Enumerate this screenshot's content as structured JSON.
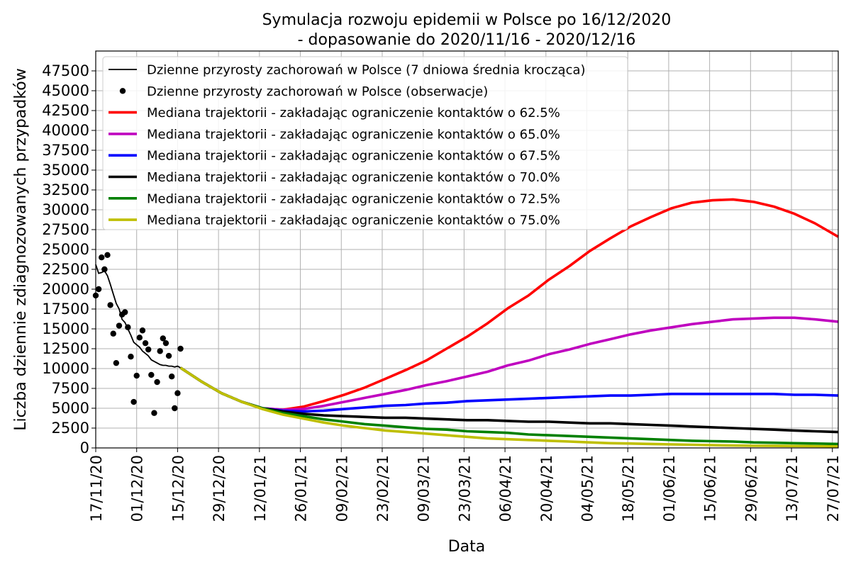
{
  "chart_data": {
    "type": "line",
    "title_line1": "Symulacja rozwoju epidemii w Polsce po 16/12/2020",
    "title_line2": "- dopasowanie do 2020/11/16 - 2020/12/16",
    "xlabel": "Data",
    "ylabel": "Liczba dziennie zdiagnozowanych przypadków",
    "xlim": [
      "2020-11-17",
      "2021-07-29"
    ],
    "ylim": [
      0,
      50000
    ],
    "grid": true,
    "legend_position": "top-left",
    "x_ticks": [
      "17/11/20",
      "01/12/20",
      "15/12/20",
      "29/12/20",
      "12/01/21",
      "26/01/21",
      "09/02/21",
      "23/02/21",
      "09/03/21",
      "23/03/21",
      "06/04/21",
      "20/04/21",
      "04/05/21",
      "18/05/21",
      "01/06/21",
      "15/06/21",
      "29/06/21",
      "13/07/21",
      "27/07/21"
    ],
    "x_tick_dates": [
      "2020-11-17",
      "2020-12-01",
      "2020-12-15",
      "2020-12-29",
      "2021-01-12",
      "2021-01-26",
      "2021-02-09",
      "2021-02-23",
      "2021-03-09",
      "2021-03-23",
      "2021-04-06",
      "2021-04-20",
      "2021-05-04",
      "2021-05-18",
      "2021-06-01",
      "2021-06-15",
      "2021-06-29",
      "2021-07-13",
      "2021-07-27"
    ],
    "y_ticks": [
      0,
      2500,
      5000,
      7500,
      10000,
      12500,
      15000,
      17500,
      20000,
      22500,
      25000,
      27500,
      30000,
      32500,
      35000,
      37500,
      40000,
      42500,
      45000,
      47500
    ],
    "observations": {
      "name": "Dzienne przyrosty zachorowań w Polsce (obserwacje)",
      "color": "#000000",
      "points": [
        [
          "2020-11-17",
          19200
        ],
        [
          "2020-11-18",
          20000
        ],
        [
          "2020-11-19",
          24000
        ],
        [
          "2020-11-20",
          22500
        ],
        [
          "2020-11-21",
          24300
        ],
        [
          "2020-11-22",
          18000
        ],
        [
          "2020-11-23",
          14400
        ],
        [
          "2020-11-24",
          10700
        ],
        [
          "2020-11-25",
          15400
        ],
        [
          "2020-11-26",
          16800
        ],
        [
          "2020-11-27",
          17100
        ],
        [
          "2020-11-28",
          15200
        ],
        [
          "2020-11-29",
          11500
        ],
        [
          "2020-11-30",
          5800
        ],
        [
          "2020-12-01",
          9100
        ],
        [
          "2020-12-02",
          13900
        ],
        [
          "2020-12-03",
          14800
        ],
        [
          "2020-12-04",
          13200
        ],
        [
          "2020-12-05",
          12400
        ],
        [
          "2020-12-06",
          9200
        ],
        [
          "2020-12-07",
          4400
        ],
        [
          "2020-12-08",
          8300
        ],
        [
          "2020-12-09",
          12200
        ],
        [
          "2020-12-10",
          13800
        ],
        [
          "2020-12-11",
          13200
        ],
        [
          "2020-12-12",
          11600
        ],
        [
          "2020-12-13",
          9000
        ],
        [
          "2020-12-14",
          5000
        ],
        [
          "2020-12-15",
          6900
        ],
        [
          "2020-12-16",
          12500
        ]
      ]
    },
    "rolling_avg": {
      "name": "Dzienne przyrosty zachorowań w Polsce (7 dniowa średnia krocząca)",
      "color": "#000000",
      "points": [
        [
          "2020-11-17",
          23100
        ],
        [
          "2020-11-18",
          22000
        ],
        [
          "2020-11-19",
          22100
        ],
        [
          "2020-11-20",
          22300
        ],
        [
          "2020-11-21",
          21700
        ],
        [
          "2020-11-22",
          20600
        ],
        [
          "2020-11-23",
          19400
        ],
        [
          "2020-11-24",
          18200
        ],
        [
          "2020-11-25",
          17500
        ],
        [
          "2020-11-26",
          16200
        ],
        [
          "2020-11-27",
          15800
        ],
        [
          "2020-11-28",
          15000
        ],
        [
          "2020-11-29",
          14200
        ],
        [
          "2020-11-30",
          13300
        ],
        [
          "2020-12-01",
          13000
        ],
        [
          "2020-12-02",
          12700
        ],
        [
          "2020-12-03",
          12200
        ],
        [
          "2020-12-04",
          11900
        ],
        [
          "2020-12-05",
          11600
        ],
        [
          "2020-12-06",
          11100
        ],
        [
          "2020-12-07",
          10900
        ],
        [
          "2020-12-08",
          10700
        ],
        [
          "2020-12-09",
          10500
        ],
        [
          "2020-12-10",
          10400
        ],
        [
          "2020-12-11",
          10400
        ],
        [
          "2020-12-12",
          10300
        ],
        [
          "2020-12-13",
          10300
        ],
        [
          "2020-12-14",
          10200
        ],
        [
          "2020-12-15",
          10300
        ],
        [
          "2020-12-16",
          10100
        ]
      ]
    },
    "series": [
      {
        "name": "Mediana trajektorii - zakładając ograniczenie kontaktów o 62.5%",
        "color": "#ff0000",
        "points": [
          [
            "2020-12-16",
            10100
          ],
          [
            "2020-12-23",
            8400
          ],
          [
            "2020-12-30",
            6900
          ],
          [
            "2021-01-06",
            5800
          ],
          [
            "2021-01-13",
            5000
          ],
          [
            "2021-01-20",
            4800
          ],
          [
            "2021-01-27",
            5200
          ],
          [
            "2021-02-03",
            5900
          ],
          [
            "2021-02-10",
            6700
          ],
          [
            "2021-02-17",
            7600
          ],
          [
            "2021-02-24",
            8700
          ],
          [
            "2021-03-03",
            9800
          ],
          [
            "2021-03-10",
            11000
          ],
          [
            "2021-03-17",
            12500
          ],
          [
            "2021-03-24",
            14000
          ],
          [
            "2021-03-31",
            15700
          ],
          [
            "2021-04-07",
            17600
          ],
          [
            "2021-04-14",
            19200
          ],
          [
            "2021-04-21",
            21200
          ],
          [
            "2021-04-28",
            22900
          ],
          [
            "2021-05-05",
            24800
          ],
          [
            "2021-05-12",
            26400
          ],
          [
            "2021-05-19",
            27900
          ],
          [
            "2021-05-26",
            29100
          ],
          [
            "2021-06-02",
            30200
          ],
          [
            "2021-06-09",
            30900
          ],
          [
            "2021-06-16",
            31200
          ],
          [
            "2021-06-23",
            31300
          ],
          [
            "2021-06-30",
            31000
          ],
          [
            "2021-07-07",
            30400
          ],
          [
            "2021-07-14",
            29500
          ],
          [
            "2021-07-21",
            28300
          ],
          [
            "2021-07-29",
            26600
          ]
        ]
      },
      {
        "name": "Mediana trajektorii - zakładając ograniczenie kontaktów o 65.0%",
        "color": "#bf00bf",
        "points": [
          [
            "2020-12-16",
            10100
          ],
          [
            "2020-12-23",
            8400
          ],
          [
            "2020-12-30",
            6900
          ],
          [
            "2021-01-06",
            5800
          ],
          [
            "2021-01-13",
            5000
          ],
          [
            "2021-01-20",
            4800
          ],
          [
            "2021-01-27",
            4900
          ],
          [
            "2021-02-03",
            5300
          ],
          [
            "2021-02-10",
            5800
          ],
          [
            "2021-02-17",
            6300
          ],
          [
            "2021-02-24",
            6800
          ],
          [
            "2021-03-03",
            7300
          ],
          [
            "2021-03-10",
            7900
          ],
          [
            "2021-03-17",
            8400
          ],
          [
            "2021-03-24",
            9000
          ],
          [
            "2021-03-31",
            9600
          ],
          [
            "2021-04-07",
            10400
          ],
          [
            "2021-04-14",
            11000
          ],
          [
            "2021-04-21",
            11800
          ],
          [
            "2021-04-28",
            12400
          ],
          [
            "2021-05-05",
            13100
          ],
          [
            "2021-05-12",
            13700
          ],
          [
            "2021-05-19",
            14300
          ],
          [
            "2021-05-26",
            14800
          ],
          [
            "2021-06-02",
            15200
          ],
          [
            "2021-06-09",
            15600
          ],
          [
            "2021-06-16",
            15900
          ],
          [
            "2021-06-23",
            16200
          ],
          [
            "2021-06-30",
            16300
          ],
          [
            "2021-07-07",
            16400
          ],
          [
            "2021-07-14",
            16400
          ],
          [
            "2021-07-21",
            16200
          ],
          [
            "2021-07-29",
            15900
          ]
        ]
      },
      {
        "name": "Mediana trajektorii - zakładając ograniczenie kontaktów o 67.5%",
        "color": "#0000ff",
        "points": [
          [
            "2020-12-16",
            10100
          ],
          [
            "2020-12-23",
            8400
          ],
          [
            "2020-12-30",
            6900
          ],
          [
            "2021-01-06",
            5800
          ],
          [
            "2021-01-13",
            5000
          ],
          [
            "2021-01-20",
            4700
          ],
          [
            "2021-01-27",
            4600
          ],
          [
            "2021-02-03",
            4700
          ],
          [
            "2021-02-10",
            4900
          ],
          [
            "2021-02-17",
            5100
          ],
          [
            "2021-02-24",
            5300
          ],
          [
            "2021-03-03",
            5400
          ],
          [
            "2021-03-10",
            5600
          ],
          [
            "2021-03-17",
            5700
          ],
          [
            "2021-03-24",
            5900
          ],
          [
            "2021-03-31",
            6000
          ],
          [
            "2021-04-07",
            6100
          ],
          [
            "2021-04-14",
            6200
          ],
          [
            "2021-04-21",
            6300
          ],
          [
            "2021-04-28",
            6400
          ],
          [
            "2021-05-05",
            6500
          ],
          [
            "2021-05-12",
            6600
          ],
          [
            "2021-05-19",
            6600
          ],
          [
            "2021-05-26",
            6700
          ],
          [
            "2021-06-02",
            6800
          ],
          [
            "2021-06-09",
            6800
          ],
          [
            "2021-06-16",
            6800
          ],
          [
            "2021-06-23",
            6800
          ],
          [
            "2021-06-30",
            6800
          ],
          [
            "2021-07-07",
            6800
          ],
          [
            "2021-07-14",
            6700
          ],
          [
            "2021-07-21",
            6700
          ],
          [
            "2021-07-29",
            6600
          ]
        ]
      },
      {
        "name": "Mediana trajektorii - zakładając ograniczenie kontaktów o 70.0%",
        "color": "#000000",
        "points": [
          [
            "2020-12-16",
            10100
          ],
          [
            "2020-12-23",
            8400
          ],
          [
            "2020-12-30",
            6900
          ],
          [
            "2021-01-06",
            5800
          ],
          [
            "2021-01-13",
            5000
          ],
          [
            "2021-01-20",
            4600
          ],
          [
            "2021-01-27",
            4300
          ],
          [
            "2021-02-03",
            4100
          ],
          [
            "2021-02-10",
            4000
          ],
          [
            "2021-02-17",
            3900
          ],
          [
            "2021-02-24",
            3800
          ],
          [
            "2021-03-03",
            3800
          ],
          [
            "2021-03-10",
            3700
          ],
          [
            "2021-03-17",
            3600
          ],
          [
            "2021-03-24",
            3500
          ],
          [
            "2021-03-31",
            3500
          ],
          [
            "2021-04-07",
            3400
          ],
          [
            "2021-04-14",
            3300
          ],
          [
            "2021-04-21",
            3300
          ],
          [
            "2021-04-28",
            3200
          ],
          [
            "2021-05-05",
            3100
          ],
          [
            "2021-05-12",
            3100
          ],
          [
            "2021-05-19",
            3000
          ],
          [
            "2021-05-26",
            2900
          ],
          [
            "2021-06-02",
            2800
          ],
          [
            "2021-06-09",
            2700
          ],
          [
            "2021-06-16",
            2600
          ],
          [
            "2021-06-23",
            2500
          ],
          [
            "2021-06-30",
            2400
          ],
          [
            "2021-07-07",
            2300
          ],
          [
            "2021-07-14",
            2200
          ],
          [
            "2021-07-21",
            2100
          ],
          [
            "2021-07-29",
            2000
          ]
        ]
      },
      {
        "name": "Mediana trajektorii - zakładając ograniczenie kontaktów o 72.5%",
        "color": "#008000",
        "points": [
          [
            "2020-12-16",
            10100
          ],
          [
            "2020-12-23",
            8400
          ],
          [
            "2020-12-30",
            6900
          ],
          [
            "2021-01-06",
            5800
          ],
          [
            "2021-01-13",
            5000
          ],
          [
            "2021-01-20",
            4400
          ],
          [
            "2021-01-27",
            4000
          ],
          [
            "2021-02-03",
            3600
          ],
          [
            "2021-02-10",
            3300
          ],
          [
            "2021-02-17",
            3000
          ],
          [
            "2021-02-24",
            2800
          ],
          [
            "2021-03-03",
            2600
          ],
          [
            "2021-03-10",
            2400
          ],
          [
            "2021-03-17",
            2300
          ],
          [
            "2021-03-24",
            2100
          ],
          [
            "2021-03-31",
            2000
          ],
          [
            "2021-04-07",
            1900
          ],
          [
            "2021-04-14",
            1700
          ],
          [
            "2021-04-21",
            1600
          ],
          [
            "2021-04-28",
            1500
          ],
          [
            "2021-05-05",
            1400
          ],
          [
            "2021-05-12",
            1300
          ],
          [
            "2021-05-19",
            1200
          ],
          [
            "2021-05-26",
            1100
          ],
          [
            "2021-06-02",
            1000
          ],
          [
            "2021-06-09",
            900
          ],
          [
            "2021-06-16",
            850
          ],
          [
            "2021-06-23",
            800
          ],
          [
            "2021-06-30",
            700
          ],
          [
            "2021-07-07",
            650
          ],
          [
            "2021-07-14",
            600
          ],
          [
            "2021-07-21",
            550
          ],
          [
            "2021-07-29",
            500
          ]
        ]
      },
      {
        "name": "Mediana trajektorii - zakładając ograniczenie kontaktów o 75.0%",
        "color": "#bfbf00",
        "points": [
          [
            "2020-12-16",
            10100
          ],
          [
            "2020-12-23",
            8400
          ],
          [
            "2020-12-30",
            6900
          ],
          [
            "2021-01-06",
            5800
          ],
          [
            "2021-01-13",
            4900
          ],
          [
            "2021-01-20",
            4200
          ],
          [
            "2021-01-27",
            3700
          ],
          [
            "2021-02-03",
            3200
          ],
          [
            "2021-02-10",
            2800
          ],
          [
            "2021-02-17",
            2500
          ],
          [
            "2021-02-24",
            2200
          ],
          [
            "2021-03-03",
            2000
          ],
          [
            "2021-03-10",
            1800
          ],
          [
            "2021-03-17",
            1600
          ],
          [
            "2021-03-24",
            1400
          ],
          [
            "2021-03-31",
            1200
          ],
          [
            "2021-04-07",
            1100
          ],
          [
            "2021-04-14",
            1000
          ],
          [
            "2021-04-21",
            900
          ],
          [
            "2021-04-28",
            800
          ],
          [
            "2021-05-05",
            700
          ],
          [
            "2021-05-12",
            600
          ],
          [
            "2021-05-19",
            550
          ],
          [
            "2021-05-26",
            500
          ],
          [
            "2021-06-02",
            450
          ],
          [
            "2021-06-09",
            400
          ],
          [
            "2021-06-16",
            350
          ],
          [
            "2021-06-23",
            300
          ],
          [
            "2021-06-30",
            280
          ],
          [
            "2021-07-07",
            260
          ],
          [
            "2021-07-14",
            240
          ],
          [
            "2021-07-21",
            220
          ],
          [
            "2021-07-29",
            200
          ]
        ]
      }
    ]
  }
}
